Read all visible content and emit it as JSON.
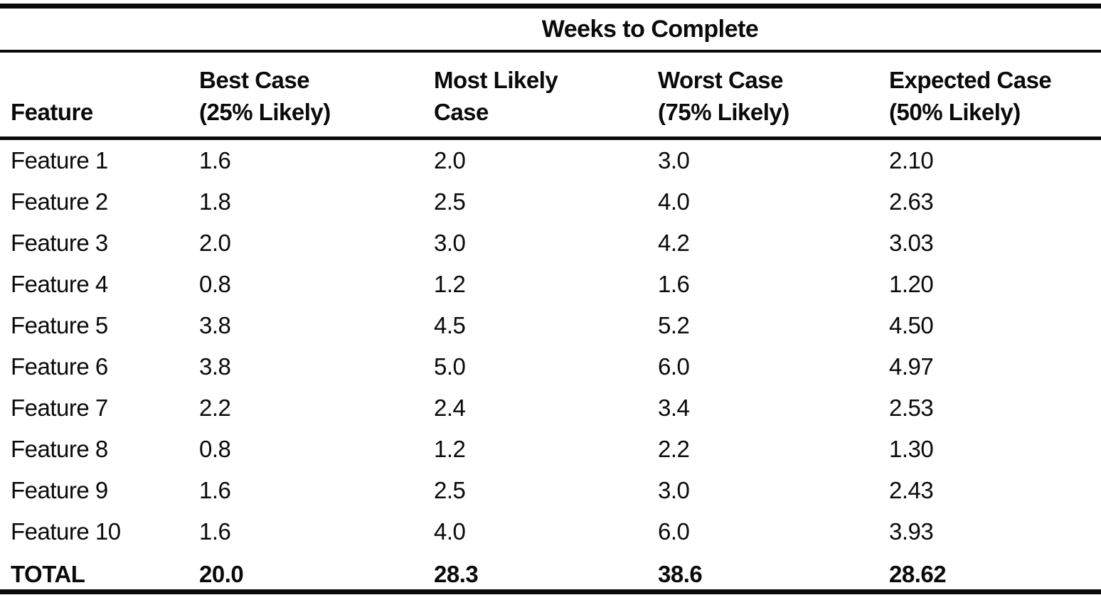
{
  "table": {
    "spanner": "Weeks to Complete",
    "columns": [
      {
        "line1": "",
        "line2": "Feature"
      },
      {
        "line1": "Best Case",
        "line2": "(25% Likely)"
      },
      {
        "line1": "Most Likely",
        "line2": "Case"
      },
      {
        "line1": "Worst Case",
        "line2": "(75% Likely)"
      },
      {
        "line1": "Expected Case",
        "line2": "(50% Likely)"
      }
    ],
    "rows": [
      [
        "Feature 1",
        "1.6",
        "2.0",
        "3.0",
        "2.10"
      ],
      [
        "Feature 2",
        "1.8",
        "2.5",
        "4.0",
        "2.63"
      ],
      [
        "Feature 3",
        "2.0",
        "3.0",
        "4.2",
        "3.03"
      ],
      [
        "Feature 4",
        "0.8",
        "1.2",
        "1.6",
        "1.20"
      ],
      [
        "Feature 5",
        "3.8",
        "4.5",
        "5.2",
        "4.50"
      ],
      [
        "Feature 6",
        "3.8",
        "5.0",
        "6.0",
        "4.97"
      ],
      [
        "Feature 7",
        "2.2",
        "2.4",
        "3.4",
        "2.53"
      ],
      [
        "Feature 8",
        "0.8",
        "1.2",
        "2.2",
        "1.30"
      ],
      [
        "Feature 9",
        "1.6",
        "2.5",
        "3.0",
        "2.43"
      ],
      [
        "Feature 10",
        "1.6",
        "4.0",
        "6.0",
        "3.93"
      ]
    ],
    "total": [
      "TOTAL",
      "20.0",
      "28.3",
      "38.6",
      "28.62"
    ],
    "ink_color": "#0a0a0a",
    "paper_color": "#ffffff"
  }
}
